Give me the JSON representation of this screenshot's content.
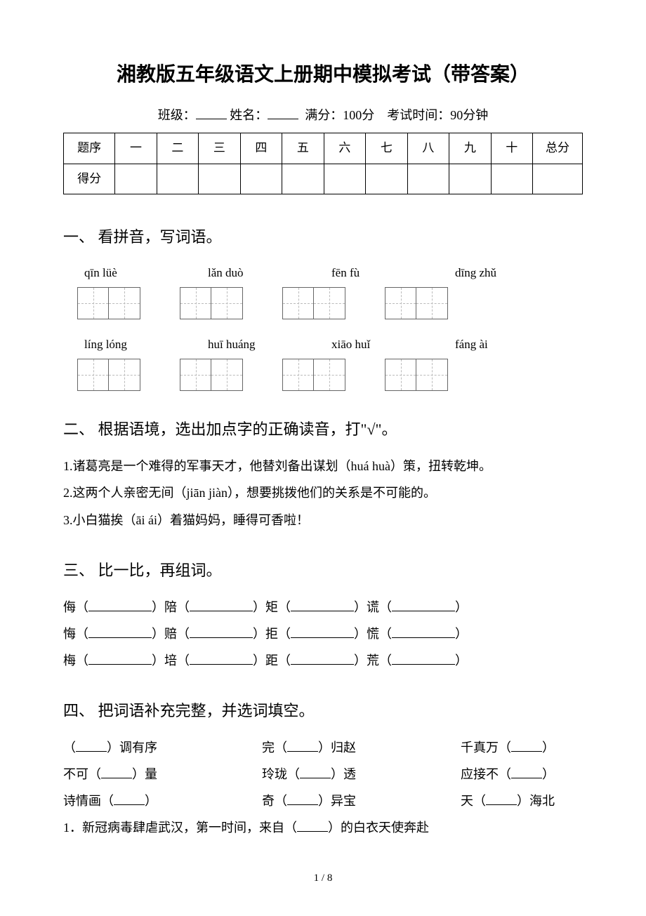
{
  "title": "湘教版五年级语文上册期中模拟考试（带答案）",
  "meta": {
    "class_label": "班级：",
    "name_label": "姓名：",
    "full_score": "满分：100分",
    "time": "考试时间：90分钟"
  },
  "score_table": {
    "row1_label": "题序",
    "row2_label": "得分",
    "cols": [
      "一",
      "二",
      "三",
      "四",
      "五",
      "六",
      "七",
      "八",
      "九",
      "十"
    ],
    "total": "总分"
  },
  "s1": {
    "heading": "一、 看拼音，写词语。",
    "pinyin_row1": [
      "qīn lüè",
      "lǎn duò",
      "fēn fù",
      "dīng zhǔ"
    ],
    "pinyin_row2": [
      "líng lóng",
      "huī huáng",
      "xiāo huǐ",
      "fáng ài"
    ],
    "cells_per_box": 2,
    "boxes_per_row": 4
  },
  "s2": {
    "heading": "二、 根据语境，选出加点字的正确读音，打\"√\"。",
    "lines": [
      "1.诸葛亮是一个难得的军事天才，他替刘备出谋划（huá huà）策，扭转乾坤。",
      "2.这两个人亲密无间（jiān jiàn），想要挑拨他们的关系是不可能的。",
      "3.小白猫挨（āi ái）着猫妈妈，睡得可香啦！"
    ]
  },
  "s3": {
    "heading": "三、 比一比，再组词。",
    "rows": [
      [
        "侮",
        "陪",
        "矩",
        "谎"
      ],
      [
        "悔",
        "赔",
        "拒",
        "慌"
      ],
      [
        "梅",
        "培",
        "距",
        "荒"
      ]
    ]
  },
  "s4": {
    "heading": "四、 把词语补充完整，并选词填空。",
    "idioms": [
      [
        "（",
        "）调有序",
        "完（",
        "）归赵",
        "千真万（",
        "）"
      ],
      [
        "不可（",
        "）量",
        "玲珑（",
        "）透",
        "应接不（",
        "）"
      ],
      [
        "诗情画（",
        "）",
        "奇（",
        "）异宝",
        "天（",
        "）海北"
      ]
    ],
    "q1": "1．新冠病毒肆虐武汉，第一时间，来自（",
    "q1_tail": "）的白衣天使奔赴"
  },
  "page": "1 / 8"
}
